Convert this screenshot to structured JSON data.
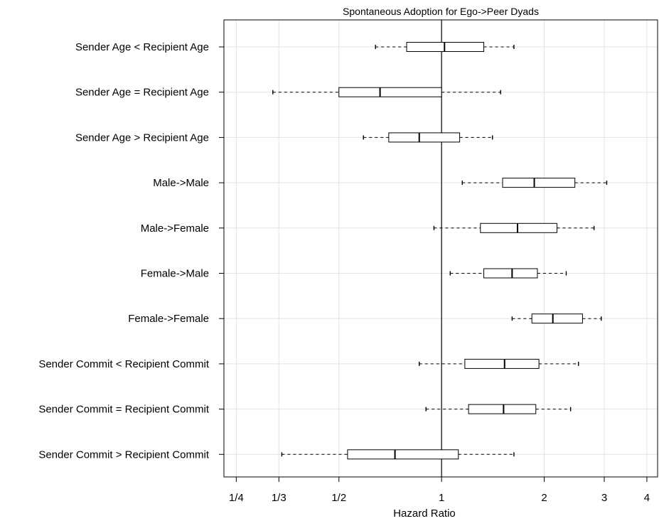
{
  "chart_data": {
    "type": "boxplot",
    "title": "Spontaneous Adoption for Ego->Peer Dyads",
    "xlabel": "Hazard Ratio",
    "ylabel": "",
    "x_scale": "log",
    "xlim": [
      0.23,
      4.3
    ],
    "x_ticks": [
      {
        "value": 0.25,
        "label": "1/4"
      },
      {
        "value": 0.3333,
        "label": "1/3"
      },
      {
        "value": 0.5,
        "label": "1/2"
      },
      {
        "value": 1,
        "label": "1"
      },
      {
        "value": 2,
        "label": "2"
      },
      {
        "value": 3,
        "label": "3"
      },
      {
        "value": 4,
        "label": "4"
      }
    ],
    "reference_line": 1,
    "grid": true,
    "categories": [
      "Sender Age < Recipient Age",
      "Sender Age = Recipient Age",
      "Sender Age > Recipient Age",
      "Male->Male",
      "Male->Female",
      "Female->Male",
      "Female->Female",
      "Sender Commit < Recipient Commit",
      "Sender Commit = Recipient Commit",
      "Sender Commit > Recipient Commit"
    ],
    "boxes": [
      {
        "whisker_low": 0.64,
        "q1": 0.79,
        "median": 1.02,
        "q3": 1.33,
        "whisker_high": 1.63
      },
      {
        "whisker_low": 0.32,
        "q1": 0.5,
        "median": 0.66,
        "q3": 1.0,
        "whisker_high": 1.49
      },
      {
        "whisker_low": 0.59,
        "q1": 0.7,
        "median": 0.86,
        "q3": 1.13,
        "whisker_high": 1.41
      },
      {
        "whisker_low": 1.15,
        "q1": 1.51,
        "median": 1.87,
        "q3": 2.46,
        "whisker_high": 3.05
      },
      {
        "whisker_low": 0.95,
        "q1": 1.3,
        "median": 1.67,
        "q3": 2.18,
        "whisker_high": 2.8
      },
      {
        "whisker_low": 1.06,
        "q1": 1.33,
        "median": 1.61,
        "q3": 1.91,
        "whisker_high": 2.32
      },
      {
        "whisker_low": 1.61,
        "q1": 1.84,
        "median": 2.12,
        "q3": 2.59,
        "whisker_high": 2.94
      },
      {
        "whisker_low": 0.86,
        "q1": 1.17,
        "median": 1.53,
        "q3": 1.93,
        "whisker_high": 2.52
      },
      {
        "whisker_low": 0.9,
        "q1": 1.2,
        "median": 1.52,
        "q3": 1.89,
        "whisker_high": 2.39
      },
      {
        "whisker_low": 0.34,
        "q1": 0.53,
        "median": 0.73,
        "q3": 1.12,
        "whisker_high": 1.63
      }
    ]
  }
}
